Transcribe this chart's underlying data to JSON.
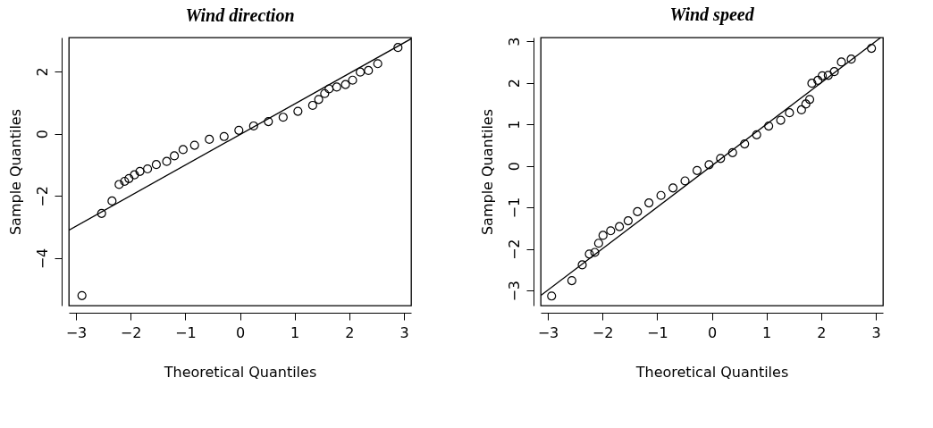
{
  "chart_data": [
    {
      "type": "scatter",
      "title": "Wind direction",
      "xlabel": "Theoretical Quantiles",
      "ylabel": "Sample Quantiles",
      "xlim": [
        -3.13,
        3.13
      ],
      "ylim": [
        -5.52,
        3.09
      ],
      "xticks": [
        -3,
        -2,
        -1,
        0,
        1,
        2,
        3
      ],
      "yticks": [
        -4,
        -2,
        0,
        2
      ],
      "series": [
        {
          "marker": "circle",
          "color": "#000000",
          "x": [
            -2.89,
            -2.53,
            -2.34,
            -2.21,
            -2.11,
            -2.03,
            -1.93,
            -1.83,
            -1.69,
            -1.53,
            -1.34,
            -1.2,
            -1.04,
            -0.83,
            -0.56,
            -0.29,
            -0.02,
            0.25,
            0.52,
            0.79,
            1.06,
            1.33,
            1.44,
            1.55,
            1.63,
            1.77,
            1.93,
            2.06,
            2.2,
            2.35,
            2.52,
            2.89
          ],
          "values": [
            -5.2,
            -2.56,
            -2.16,
            -1.63,
            -1.53,
            -1.44,
            -1.32,
            -1.21,
            -1.13,
            -0.99,
            -0.89,
            -0.71,
            -0.51,
            -0.37,
            -0.18,
            -0.09,
            0.11,
            0.25,
            0.39,
            0.53,
            0.72,
            0.91,
            1.1,
            1.29,
            1.44,
            1.5,
            1.58,
            1.72,
            1.98,
            2.03,
            2.25,
            2.77
          ]
        },
        {
          "type": "line",
          "marker": "none",
          "color": "#000000",
          "x": [
            -3.13,
            3.13
          ],
          "values": [
            -3.1,
            3.05
          ]
        }
      ]
    },
    {
      "type": "scatter",
      "title": "Wind speed",
      "xlabel": "Theoretical Quantiles",
      "ylabel": "Sample Quantiles",
      "xlim": [
        -3.13,
        3.13
      ],
      "ylim": [
        -3.36,
        3.09
      ],
      "xticks": [
        -3,
        -2,
        -1,
        0,
        1,
        2,
        3
      ],
      "yticks": [
        -3,
        -2,
        -1,
        0,
        1,
        2,
        3
      ],
      "series": [
        {
          "marker": "circle",
          "color": "#000000",
          "x": [
            -2.93,
            -2.56,
            -2.37,
            -2.24,
            -2.14,
            -2.07,
            -1.99,
            -1.85,
            -1.69,
            -1.53,
            -1.36,
            -1.15,
            -0.93,
            -0.71,
            -0.49,
            -0.27,
            -0.05,
            0.16,
            0.38,
            0.6,
            0.82,
            1.04,
            1.26,
            1.42,
            1.64,
            1.72,
            1.79,
            1.83,
            1.94,
            2.02,
            2.13,
            2.24,
            2.37,
            2.55,
            2.92
          ],
          "values": [
            -3.13,
            -2.76,
            -2.38,
            -2.12,
            -2.08,
            -1.86,
            -1.67,
            -1.56,
            -1.46,
            -1.32,
            -1.1,
            -0.89,
            -0.71,
            -0.53,
            -0.36,
            -0.11,
            0.03,
            0.18,
            0.32,
            0.53,
            0.75,
            0.96,
            1.1,
            1.28,
            1.35,
            1.49,
            1.6,
            1.99,
            2.06,
            2.17,
            2.18,
            2.27,
            2.5,
            2.57,
            2.83
          ]
        },
        {
          "type": "line",
          "marker": "none",
          "color": "#000000",
          "x": [
            -3.13,
            3.09
          ],
          "values": [
            -3.12,
            3.09
          ]
        }
      ]
    }
  ]
}
